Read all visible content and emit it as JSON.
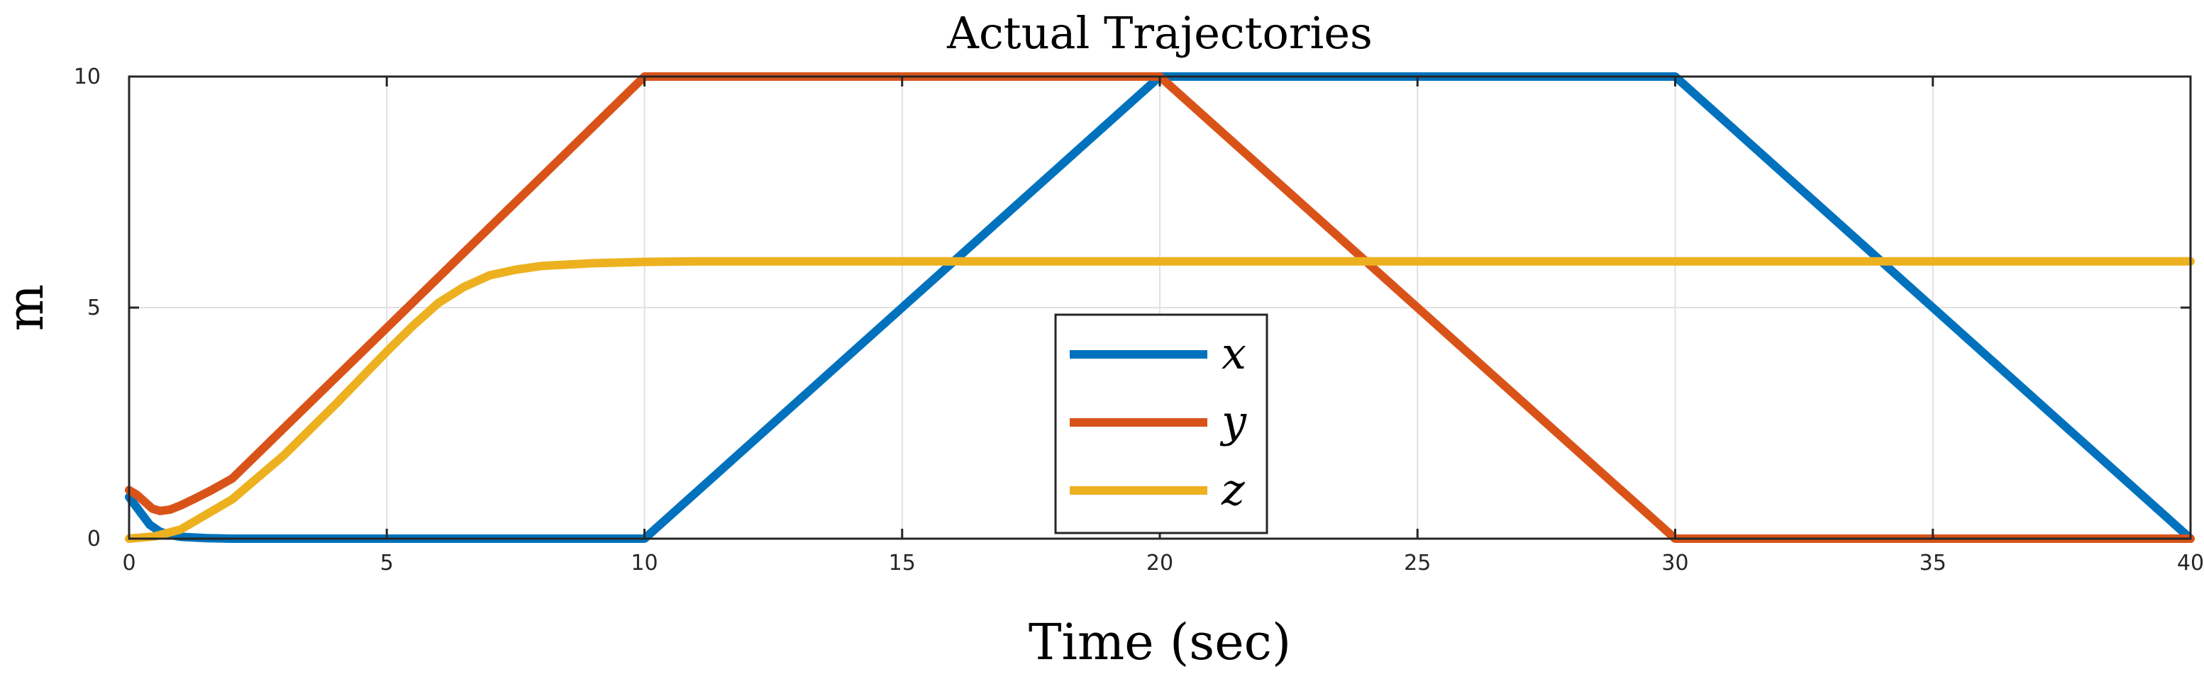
{
  "chart_data": {
    "type": "line",
    "title": "Actual Trajectories",
    "xlabel": "Time (sec)",
    "ylabel": "m",
    "xlim": [
      0,
      40
    ],
    "ylim": [
      0,
      10
    ],
    "xticks": [
      0,
      5,
      10,
      15,
      20,
      25,
      30,
      35,
      40
    ],
    "yticks": [
      0,
      5,
      10
    ],
    "grid": true,
    "legend_position": "center",
    "series": [
      {
        "name": "x",
        "color": "#0072BD",
        "x": [
          0,
          0.2,
          0.4,
          0.6,
          0.8,
          1.0,
          1.5,
          2.0,
          3.0,
          10,
          20,
          30,
          40
        ],
        "y": [
          0.9,
          0.6,
          0.3,
          0.15,
          0.08,
          0.04,
          0.01,
          0,
          0,
          0,
          10,
          10,
          0
        ]
      },
      {
        "name": "y",
        "color": "#D95319",
        "x": [
          0,
          0.15,
          0.3,
          0.45,
          0.6,
          0.8,
          1.0,
          1.3,
          1.6,
          2.0,
          10,
          20,
          30,
          40
        ],
        "y": [
          1.05,
          0.95,
          0.8,
          0.65,
          0.6,
          0.63,
          0.72,
          0.88,
          1.05,
          1.3,
          10,
          10,
          0,
          0
        ]
      },
      {
        "name": "z",
        "color": "#EDB120",
        "x": [
          0,
          0.5,
          1.0,
          2.0,
          3.0,
          4.0,
          5.0,
          5.5,
          6.0,
          6.5,
          7.0,
          7.5,
          8.0,
          9.0,
          10.0,
          11.0,
          40
        ],
        "y": [
          0,
          0.05,
          0.2,
          0.85,
          1.8,
          2.9,
          4.05,
          4.6,
          5.1,
          5.45,
          5.7,
          5.82,
          5.9,
          5.96,
          5.99,
          6.0,
          6.0
        ]
      }
    ]
  }
}
